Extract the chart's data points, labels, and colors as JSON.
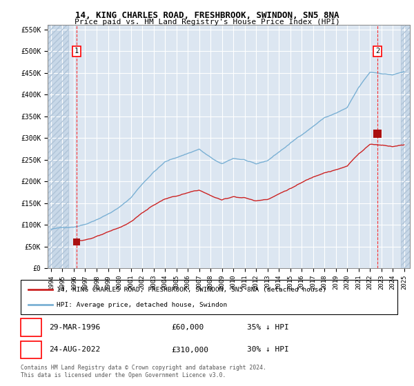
{
  "title1": "14, KING CHARLES ROAD, FRESHBROOK, SWINDON, SN5 8NA",
  "title2": "Price paid vs. HM Land Registry's House Price Index (HPI)",
  "ylabel_ticks": [
    "£0",
    "£50K",
    "£100K",
    "£150K",
    "£200K",
    "£250K",
    "£300K",
    "£350K",
    "£400K",
    "£450K",
    "£500K",
    "£550K"
  ],
  "ytick_vals": [
    0,
    50000,
    100000,
    150000,
    200000,
    250000,
    300000,
    350000,
    400000,
    450000,
    500000,
    550000
  ],
  "ylim": [
    0,
    560000
  ],
  "xlim_start": 1993.7,
  "xlim_end": 2025.5,
  "bg_color": "#dce6f1",
  "hatch_color": "#c8d8e8",
  "grid_color": "#ffffff",
  "line_color_red": "#cc2222",
  "line_color_blue": "#7ab0d4",
  "marker_color_red": "#aa1111",
  "purchase1_x": 1996.24,
  "purchase1_y": 60000,
  "purchase2_x": 2022.65,
  "purchase2_y": 310000,
  "legend_line1": "14, KING CHARLES ROAD, FRESHBROOK, SWINDON, SN5 8NA (detached house)",
  "legend_line2": "HPI: Average price, detached house, Swindon",
  "annot1_date": "29-MAR-1996",
  "annot1_price": "£60,000",
  "annot1_hpi": "35% ↓ HPI",
  "annot2_date": "24-AUG-2022",
  "annot2_price": "£310,000",
  "annot2_hpi": "30% ↓ HPI",
  "footnote": "Contains HM Land Registry data © Crown copyright and database right 2024.\nThis data is licensed under the Open Government Licence v3.0."
}
